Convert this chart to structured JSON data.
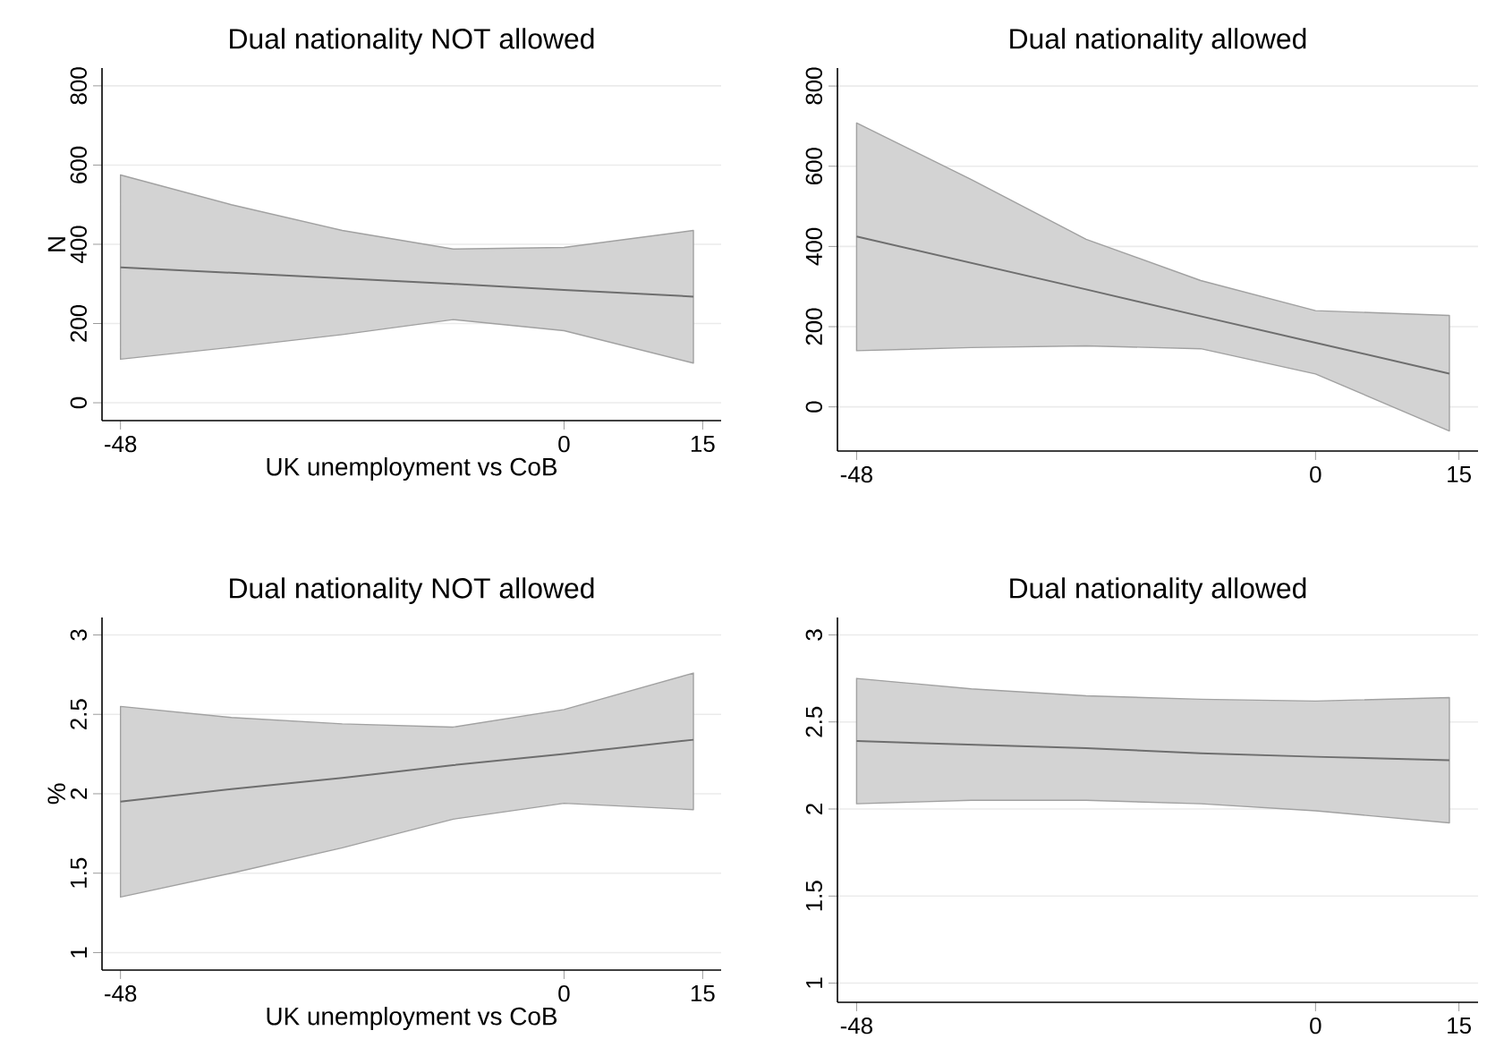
{
  "chart_data": [
    {
      "type": "line",
      "title": "Dual nationality NOT allowed",
      "xlabel": "UK unemployment vs CoB",
      "ylabel": "N",
      "x": [
        -48,
        -36,
        -24,
        -12,
        0,
        14
      ],
      "xlim": [
        -50,
        17
      ],
      "xticks": [
        -48,
        0,
        15
      ],
      "ylim": [
        -45,
        845
      ],
      "yticks": [
        0,
        200,
        400,
        600,
        800
      ],
      "grid": "y",
      "series": [
        {
          "color": "#6e6e6e",
          "values": [
            342,
            328,
            314,
            300,
            285,
            268
          ],
          "lower": [
            110,
            140,
            172,
            210,
            182,
            100
          ],
          "upper": [
            575,
            500,
            435,
            388,
            392,
            435
          ]
        }
      ]
    },
    {
      "type": "line",
      "title": "Dual nationality allowed",
      "x": [
        -48,
        -36,
        -24,
        -12,
        0,
        14
      ],
      "xlim": [
        -50,
        17
      ],
      "xticks": [
        -48,
        0,
        15
      ],
      "ylim": [
        -110,
        845
      ],
      "yticks": [
        0,
        200,
        400,
        600,
        800
      ],
      "grid": "y",
      "series": [
        {
          "color": "#6e6e6e",
          "values": [
            425,
            359,
            293,
            226,
            160,
            83
          ],
          "lower": [
            140,
            148,
            152,
            145,
            82,
            -60
          ],
          "upper": [
            708,
            567,
            418,
            315,
            240,
            228
          ]
        }
      ]
    },
    {
      "type": "line",
      "title": "Dual nationality NOT allowed",
      "xlabel": "UK unemployment vs CoB",
      "ylabel": "%",
      "x": [
        -48,
        -36,
        -24,
        -12,
        0,
        14
      ],
      "xlim": [
        -50,
        17
      ],
      "xticks": [
        -48,
        0,
        15
      ],
      "ylim": [
        0.89,
        3.11
      ],
      "yticks": [
        1,
        1.5,
        2,
        2.5,
        3
      ],
      "grid": "y",
      "series": [
        {
          "color": "#6e6e6e",
          "values": [
            1.95,
            2.03,
            2.1,
            2.18,
            2.25,
            2.34
          ],
          "lower": [
            1.35,
            1.5,
            1.66,
            1.84,
            1.94,
            1.9
          ],
          "upper": [
            2.55,
            2.48,
            2.44,
            2.42,
            2.53,
            2.76
          ]
        }
      ]
    },
    {
      "type": "line",
      "title": "Dual nationality allowed",
      "x": [
        -48,
        -36,
        -24,
        -12,
        0,
        14
      ],
      "xlim": [
        -50,
        17
      ],
      "xticks": [
        -48,
        0,
        15
      ],
      "ylim": [
        0.89,
        3.1
      ],
      "yticks": [
        1,
        1.5,
        2,
        2.5,
        3
      ],
      "grid": "y",
      "series": [
        {
          "color": "#6e6e6e",
          "values": [
            2.39,
            2.37,
            2.35,
            2.32,
            2.3,
            2.28
          ],
          "lower": [
            2.03,
            2.05,
            2.05,
            2.03,
            1.99,
            1.92
          ],
          "upper": [
            2.75,
            2.69,
            2.65,
            2.63,
            2.62,
            2.64
          ]
        }
      ]
    }
  ]
}
